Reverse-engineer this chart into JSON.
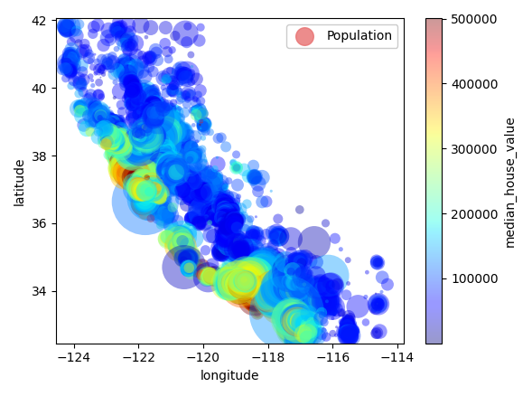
{
  "xlabel": "longitude",
  "ylabel": "latitude",
  "colorbar_label": "median_house_value",
  "legend_label": "Population",
  "xlim": [
    -124.55,
    -113.8
  ],
  "ylim": [
    32.45,
    42.05
  ],
  "xticks": [
    -124,
    -122,
    -120,
    -118,
    -116,
    -114
  ],
  "yticks": [
    34,
    36,
    38,
    40,
    42
  ],
  "colormap": "jet",
  "color_min": 0,
  "color_max": 500000,
  "colorbar_ticks": [
    100000,
    200000,
    300000,
    400000,
    500000
  ],
  "alpha": 0.4,
  "size_scale": 0.1,
  "legend_marker_size": 200,
  "legend_marker_color": "#e87070",
  "background_color": "#ffffff",
  "figsize": [
    5.89,
    4.38
  ],
  "dpi": 100
}
